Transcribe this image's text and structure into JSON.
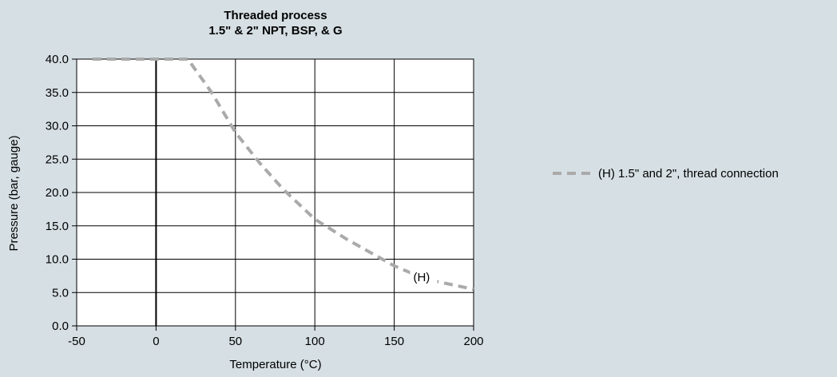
{
  "colors": {
    "background": "#d6dfe4",
    "plot_area": "#ffffff",
    "grid": "#000000",
    "series_line": "#aaaaaa",
    "text": "#000000"
  },
  "chart_data": {
    "type": "line",
    "title": "Threaded process",
    "subtitle": "1.5\" & 2\" NPT, BSP, & G",
    "xlabel": "Temperature (°C)",
    "ylabel": "Pressure (bar, gauge)",
    "xlim": [
      -50,
      200
    ],
    "ylim": [
      0,
      40
    ],
    "xticks": [
      -50,
      0,
      50,
      100,
      150,
      200
    ],
    "xtick_labels": [
      "-50",
      "0",
      "50",
      "100",
      "150",
      "200"
    ],
    "yticks": [
      0,
      5,
      10,
      15,
      20,
      25,
      30,
      35,
      40
    ],
    "ytick_labels": [
      "0.0",
      "5.0",
      "10.0",
      "15.0",
      "20.0",
      "25.0",
      "30.0",
      "35.0",
      "40.0"
    ],
    "grid": true,
    "legend_position": "right",
    "series": [
      {
        "name": "(H) 1.5\" and 2\", thread connection",
        "label": "(H)",
        "style": "dashed",
        "x": [
          -40,
          0,
          20,
          35,
          50,
          65,
          80,
          100,
          120,
          150,
          170,
          200
        ],
        "y": [
          40.0,
          40.0,
          40.0,
          35.0,
          29.0,
          24.5,
          20.5,
          16.0,
          13.0,
          9.0,
          7.0,
          5.5
        ]
      }
    ]
  }
}
